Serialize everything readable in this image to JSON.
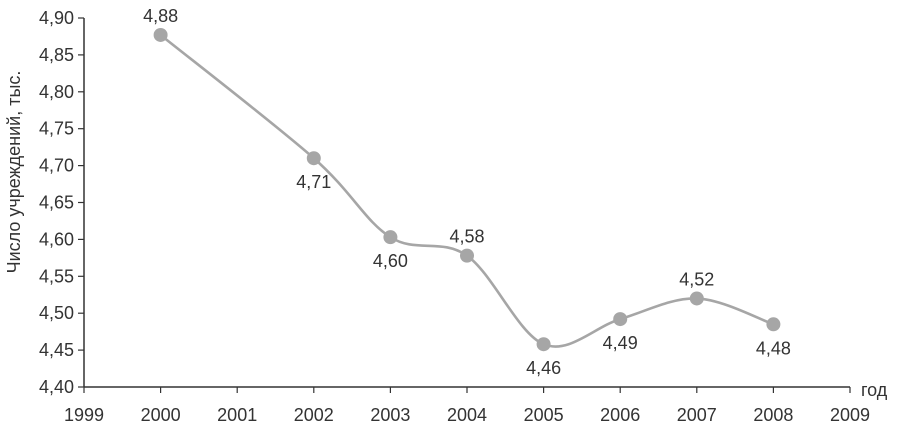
{
  "chart_data": {
    "type": "line",
    "ylabel": "Число учреждений, тыс.",
    "xlabel": "год",
    "xlim": [
      1999,
      2009
    ],
    "ylim": [
      4.4,
      4.9
    ],
    "x_ticks": [
      "1999",
      "2000",
      "2001",
      "2002",
      "2003",
      "2004",
      "2005",
      "2006",
      "2007",
      "2008",
      "2009"
    ],
    "y_ticks": [
      "4,40",
      "4,45",
      "4,50",
      "4,55",
      "4,60",
      "4,65",
      "4,70",
      "4,75",
      "4,80",
      "4,85",
      "4,90"
    ],
    "grid": false,
    "colors": {
      "line": "#a6a6a6",
      "marker": "#a6a6a6",
      "axis": "#333333",
      "text": "#333333"
    },
    "points": [
      {
        "x": 2000,
        "y": 4.877,
        "label": "4,88",
        "label_position": "above"
      },
      {
        "x": 2002,
        "y": 4.71,
        "label": "4,71",
        "label_position": "below"
      },
      {
        "x": 2003,
        "y": 4.603,
        "label": "4,60",
        "label_position": "below"
      },
      {
        "x": 2004,
        "y": 4.578,
        "label": "4,58",
        "label_position": "above"
      },
      {
        "x": 2005,
        "y": 4.458,
        "label": "4,46",
        "label_position": "below"
      },
      {
        "x": 2006,
        "y": 4.492,
        "label": "4,49",
        "label_position": "below"
      },
      {
        "x": 2007,
        "y": 4.52,
        "label": "4,52",
        "label_position": "above"
      },
      {
        "x": 2008,
        "y": 4.485,
        "label": "4,48",
        "label_position": "below"
      }
    ]
  }
}
